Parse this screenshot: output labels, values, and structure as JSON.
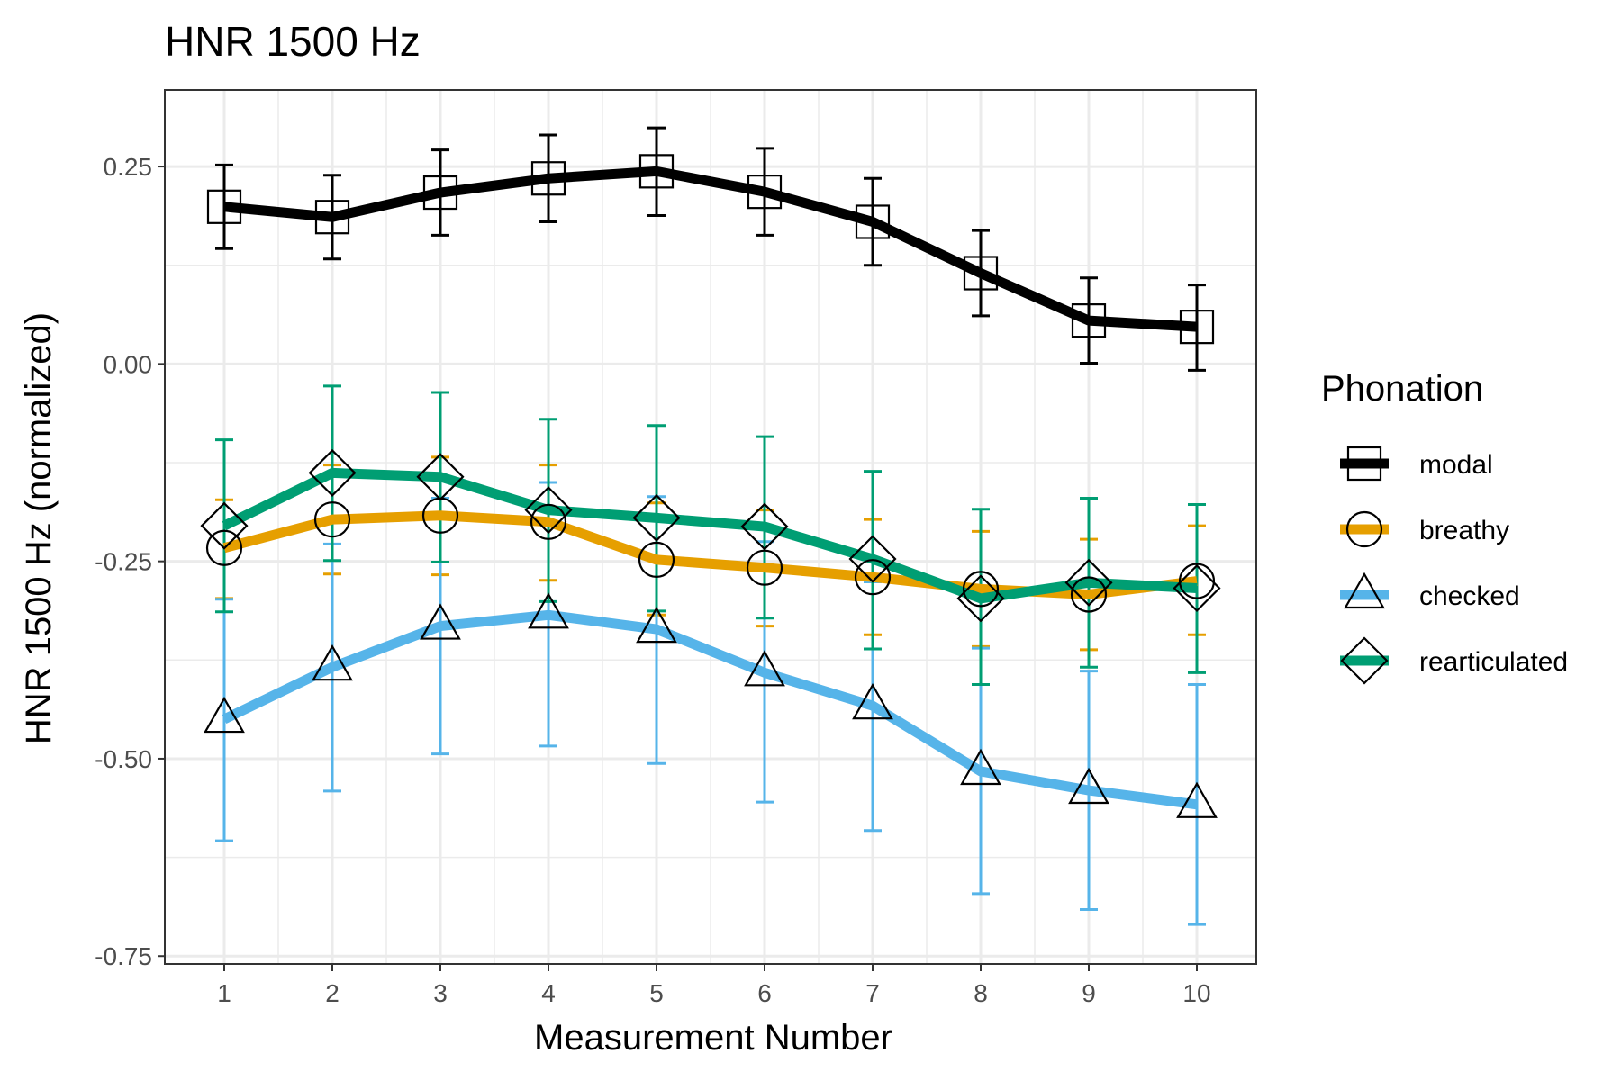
{
  "chart_data": {
    "type": "line",
    "title": "HNR 1500 Hz",
    "xlabel": "Measurement Number",
    "ylabel": "HNR 1500 Hz (normalized)",
    "x": [
      1,
      2,
      3,
      4,
      5,
      6,
      7,
      8,
      9,
      10
    ],
    "x_tick_labels": [
      "1",
      "2",
      "3",
      "4",
      "5",
      "6",
      "7",
      "8",
      "9",
      "10"
    ],
    "xlim": [
      0.45,
      10.55
    ],
    "ylim": [
      -0.76,
      0.347
    ],
    "y_ticks": [
      0.25,
      0.0,
      -0.25,
      -0.5,
      -0.75
    ],
    "y_tick_labels": [
      "0.25",
      "0.00",
      "-0.25",
      "-0.50",
      "-0.75"
    ],
    "grid": true,
    "legend": {
      "title": "Phonation",
      "position": "right"
    },
    "series": [
      {
        "name": "modal",
        "color": "#000000",
        "marker": "square",
        "values": [
          0.199,
          0.186,
          0.217,
          0.235,
          0.244,
          0.218,
          0.18,
          0.115,
          0.055,
          0.047
        ],
        "error_low": [
          0.146,
          0.133,
          0.163,
          0.18,
          0.188,
          0.163,
          0.125,
          0.061,
          0.001,
          -0.008
        ],
        "error_high": [
          0.252,
          0.239,
          0.271,
          0.29,
          0.299,
          0.273,
          0.235,
          0.169,
          0.109,
          0.1
        ]
      },
      {
        "name": "breathy",
        "color": "#E69F00",
        "marker": "circle",
        "values": [
          -0.233,
          -0.197,
          -0.192,
          -0.2,
          -0.248,
          -0.258,
          -0.27,
          -0.285,
          -0.292,
          -0.275
        ],
        "error_low": [
          -0.297,
          -0.266,
          -0.267,
          -0.274,
          -0.318,
          -0.332,
          -0.343,
          -0.358,
          -0.362,
          -0.343
        ],
        "error_high": [
          -0.172,
          -0.128,
          -0.118,
          -0.128,
          -0.176,
          -0.185,
          -0.197,
          -0.212,
          -0.222,
          -0.205
        ]
      },
      {
        "name": "checked",
        "color": "#56B4E9",
        "marker": "triangle",
        "values": [
          -0.45,
          -0.384,
          -0.332,
          -0.318,
          -0.336,
          -0.391,
          -0.433,
          -0.516,
          -0.54,
          -0.558
        ],
        "error_low": [
          -0.604,
          -0.541,
          -0.494,
          -0.484,
          -0.506,
          -0.555,
          -0.591,
          -0.671,
          -0.691,
          -0.71
        ],
        "error_high": [
          -0.298,
          -0.228,
          -0.17,
          -0.15,
          -0.168,
          -0.225,
          -0.276,
          -0.36,
          -0.389,
          -0.406
        ]
      },
      {
        "name": "rearticulated",
        "color": "#009E73",
        "marker": "diamond",
        "values": [
          -0.205,
          -0.138,
          -0.143,
          -0.185,
          -0.195,
          -0.206,
          -0.247,
          -0.297,
          -0.277,
          -0.284
        ],
        "error_low": [
          -0.314,
          -0.249,
          -0.251,
          -0.301,
          -0.313,
          -0.322,
          -0.361,
          -0.406,
          -0.384,
          -0.391
        ],
        "error_high": [
          -0.096,
          -0.028,
          -0.036,
          -0.07,
          -0.078,
          -0.092,
          -0.136,
          -0.184,
          -0.17,
          -0.178
        ]
      }
    ]
  }
}
